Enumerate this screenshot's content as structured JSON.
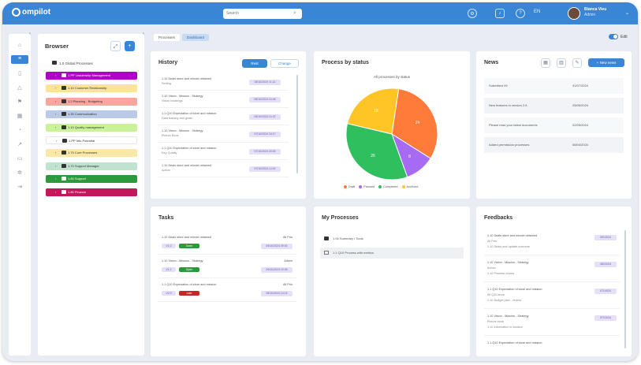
{
  "app": {
    "logo": "ompilot"
  },
  "search": {
    "placeholder": "Search"
  },
  "header": {
    "language": "EN",
    "user_name": "Bianca Vieu",
    "user_role": "Admin"
  },
  "rail": {
    "icons": [
      "home-icon",
      "filter-icon",
      "document-icon",
      "alert-icon",
      "flag-icon",
      "grid-icon",
      "chart-icon",
      "arrow-icon",
      "folder-icon",
      "gear-icon",
      "logout-icon"
    ]
  },
  "browser": {
    "title": "Browser",
    "root": "1.0 Global Processes",
    "items": [
      {
        "label": "1.PP Leadership Management",
        "color": "#b000c8"
      },
      {
        "label": "1.10 Customer Relationship",
        "color": "#fbe39a"
      },
      {
        "label": "1.2 Planning - Budgeting",
        "color": "#f7a6a0"
      },
      {
        "label": "1.30 Communication",
        "color": "#b9c9e6"
      },
      {
        "label": "1.10 Quality management",
        "color": "#c9f29a"
      },
      {
        "label": "1.PP Info Potential",
        "color": "#ffffff"
      },
      {
        "label": "1.70 Core Processes",
        "color": "#fbe7a8"
      },
      {
        "label": "1.70 Support Manager",
        "color": "#bfe3cc"
      },
      {
        "label": "1.80 Support",
        "color": "#2c9a3a"
      },
      {
        "label": "1.80 Finance",
        "color": "#c2185b"
      }
    ]
  },
  "tabs": [
    {
      "label": "Processes"
    },
    {
      "label": "Dashboard"
    }
  ],
  "edit_toggle": {
    "label": "Edit"
  },
  "history": {
    "title": "History",
    "btn_primary": "Rest",
    "btn_secondary": "Change",
    "rows": [
      {
        "l1": "1.10 Deals store and minute obtained",
        "l2": "Setting",
        "date": "08/10/2024 11:12"
      },
      {
        "l1": "1.10 Vision - Mission - Strategy",
        "l2": "Vision bookings",
        "date": "08/10/2024 10:45"
      },
      {
        "l1": "1.1 Q10 Expectation of store and mission",
        "l2": "Data training and goals",
        "date": "08/10/2024 10:22"
      },
      {
        "l1": "1.10 Vision - Mission - Strategy",
        "l2": "Picture Book",
        "date": "07/10/2024 16:17"
      },
      {
        "l1": "1.1 Q10 Expectation of store and mission",
        "l2": "Key Quality",
        "date": "07/10/2024 15:30"
      },
      {
        "l1": "1.10 Deals store and minute obtained",
        "l2": "Admin",
        "date": "07/10/2024 14:02"
      }
    ]
  },
  "pie": {
    "title": "Process by status",
    "subtitle": "All processes by status"
  },
  "chart_data": {
    "type": "pie",
    "title": "Process by status",
    "subtitle": "All processes by status",
    "series": [
      {
        "name": "Draft",
        "value": 24,
        "color": "#ff7b39"
      },
      {
        "name": "Planned",
        "value": 8,
        "color": "#a66bf2"
      },
      {
        "name": "Completed",
        "value": 26,
        "color": "#2fbf5f"
      },
      {
        "name": "Archived",
        "value": 18,
        "color": "#ffc526"
      }
    ],
    "legend_position": "bottom"
  },
  "news": {
    "title": "News",
    "btn_new": "New news",
    "rows": [
      {
        "title": "Submitted 09",
        "date": "31/07/2024"
      },
      {
        "title": "New features in version 2.6",
        "date": "25/06/2024"
      },
      {
        "title": "Please read your latest documents",
        "date": "22/05/2024"
      },
      {
        "title": "Added permission processes",
        "date": "08/04/2024"
      }
    ]
  },
  "tasks": {
    "title": "Tasks",
    "rows": [
      {
        "l1": "1.10 Deals store and minute obtained",
        "right": "All Prio",
        "tag": "V1.0",
        "status": "Done",
        "status_color": "#2c9a3a",
        "date": "09/10/2024 09:00"
      },
      {
        "l1": "1.10 Vision - Mission - Strategy",
        "right": "Admin",
        "tag": "V1.2",
        "status": "Open",
        "status_color": "#2c9a3a",
        "date": "09/10/2024 10:30"
      },
      {
        "l1": "1.1 Q10 Expectation of store and mission",
        "right": "All Prio",
        "tag": "V2.0",
        "status": "Late",
        "status_color": "#c62828",
        "date": "08/10/2024 14:15"
      }
    ]
  },
  "processes": {
    "title": "My Processes",
    "rows": [
      "1.00 Summary / Tools",
      "1.1 Q10 Process with metrics"
    ]
  },
  "feedbacks": {
    "title": "Feedbacks",
    "rows": [
      {
        "l1": "1.10 Deals store and minute obtained",
        "l2": "All Prio",
        "l3": "1.10 Deals and update outcome",
        "date": "09/10/24"
      },
      {
        "l1": "1.10 Vision - Mission - Strategy",
        "l2": "Admin",
        "l3": "1.10 Process review",
        "date": "08/10/24"
      },
      {
        "l1": "1.1 Q10 Expectation of store and mission",
        "l2": "All Q10 store",
        "l3": "1.10 Budget plan - review",
        "date": "07/10/24"
      },
      {
        "l1": "1.10 Vision - Mission - Strategy",
        "l2": "Picture book",
        "l3": "1.10 Information to section",
        "date": "07/10/24"
      },
      {
        "l1": "1.1 Q10 Expectation of store and mission",
        "l2": "",
        "l3": "",
        "date": ""
      }
    ]
  }
}
